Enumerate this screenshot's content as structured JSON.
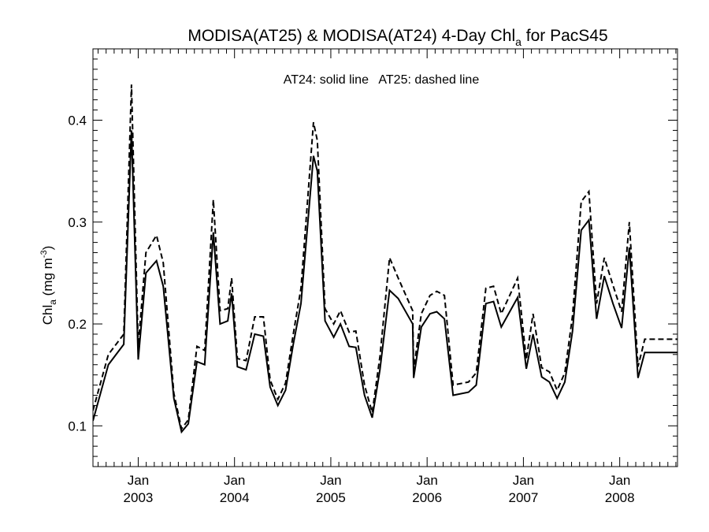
{
  "chart_data": {
    "type": "line",
    "title": {
      "prefix": "MODISA(AT25) & MODISA(AT24) 4-Day Chl",
      "subscript": "a",
      "suffix": " for PacS45"
    },
    "ylabel": {
      "prefix": "Chl",
      "subscript": "a",
      "middle": " (mg m",
      "superscript": "-3",
      "suffix": ")"
    },
    "annotation": "AT24: solid line   AT25: dashed line",
    "xlim": [
      2002.53,
      2008.6
    ],
    "ylim": [
      0.06,
      0.47
    ],
    "y_ticks": [
      {
        "value": 0.1,
        "label": "0.1"
      },
      {
        "value": 0.2,
        "label": "0.2"
      },
      {
        "value": 0.3,
        "label": "0.3"
      },
      {
        "value": 0.4,
        "label": "0.4"
      }
    ],
    "x_ticks": [
      {
        "value": 2003.0,
        "month": "Jan",
        "year": "2003"
      },
      {
        "value": 2004.0,
        "month": "Jan",
        "year": "2004"
      },
      {
        "value": 2005.0,
        "month": "Jan",
        "year": "2005"
      },
      {
        "value": 2006.0,
        "month": "Jan",
        "year": "2006"
      },
      {
        "value": 2007.0,
        "month": "Jan",
        "year": "2007"
      },
      {
        "value": 2008.0,
        "month": "Jan",
        "year": "2008"
      }
    ],
    "grid": false,
    "series": [
      {
        "style": "solid",
        "points": [
          [
            2002.53,
            0.105
          ],
          [
            2002.69,
            0.16
          ],
          [
            2002.85,
            0.18
          ],
          [
            2002.93,
            0.39
          ],
          [
            2003.0,
            0.165
          ],
          [
            2003.08,
            0.25
          ],
          [
            2003.19,
            0.262
          ],
          [
            2003.26,
            0.237
          ],
          [
            2003.37,
            0.127
          ],
          [
            2003.45,
            0.094
          ],
          [
            2003.52,
            0.102
          ],
          [
            2003.61,
            0.163
          ],
          [
            2003.69,
            0.16
          ],
          [
            2003.78,
            0.29
          ],
          [
            2003.85,
            0.2
          ],
          [
            2003.93,
            0.203
          ],
          [
            2003.97,
            0.23
          ],
          [
            2004.03,
            0.158
          ],
          [
            2004.12,
            0.155
          ],
          [
            2004.21,
            0.19
          ],
          [
            2004.3,
            0.188
          ],
          [
            2004.37,
            0.138
          ],
          [
            2004.45,
            0.12
          ],
          [
            2004.53,
            0.135
          ],
          [
            2004.61,
            0.18
          ],
          [
            2004.69,
            0.22
          ],
          [
            2004.82,
            0.365
          ],
          [
            2004.86,
            0.35
          ],
          [
            2004.94,
            0.203
          ],
          [
            2005.03,
            0.187
          ],
          [
            2005.1,
            0.2
          ],
          [
            2005.19,
            0.178
          ],
          [
            2005.26,
            0.177
          ],
          [
            2005.35,
            0.13
          ],
          [
            2005.43,
            0.108
          ],
          [
            2005.51,
            0.155
          ],
          [
            2005.61,
            0.233
          ],
          [
            2005.7,
            0.225
          ],
          [
            2005.85,
            0.2
          ],
          [
            2005.86,
            0.147
          ],
          [
            2005.94,
            0.197
          ],
          [
            2006.03,
            0.21
          ],
          [
            2006.1,
            0.212
          ],
          [
            2006.18,
            0.205
          ],
          [
            2006.27,
            0.13
          ],
          [
            2006.43,
            0.133
          ],
          [
            2006.51,
            0.14
          ],
          [
            2006.61,
            0.22
          ],
          [
            2006.69,
            0.222
          ],
          [
            2006.77,
            0.197
          ],
          [
            2006.94,
            0.226
          ],
          [
            2007.03,
            0.156
          ],
          [
            2007.1,
            0.19
          ],
          [
            2007.19,
            0.148
          ],
          [
            2007.27,
            0.143
          ],
          [
            2007.35,
            0.127
          ],
          [
            2007.43,
            0.143
          ],
          [
            2007.51,
            0.193
          ],
          [
            2007.6,
            0.292
          ],
          [
            2007.68,
            0.302
          ],
          [
            2007.76,
            0.205
          ],
          [
            2007.84,
            0.247
          ],
          [
            2007.93,
            0.22
          ],
          [
            2008.02,
            0.196
          ],
          [
            2008.1,
            0.275
          ],
          [
            2008.19,
            0.147
          ],
          [
            2008.26,
            0.172
          ],
          [
            2008.6,
            0.172
          ]
        ]
      },
      {
        "style": "dashed",
        "points": [
          [
            2002.53,
            0.115
          ],
          [
            2002.69,
            0.17
          ],
          [
            2002.85,
            0.19
          ],
          [
            2002.93,
            0.435
          ],
          [
            2003.0,
            0.178
          ],
          [
            2003.08,
            0.27
          ],
          [
            2003.19,
            0.287
          ],
          [
            2003.26,
            0.26
          ],
          [
            2003.37,
            0.132
          ],
          [
            2003.45,
            0.097
          ],
          [
            2003.52,
            0.106
          ],
          [
            2003.61,
            0.178
          ],
          [
            2003.69,
            0.174
          ],
          [
            2003.78,
            0.322
          ],
          [
            2003.85,
            0.213
          ],
          [
            2003.93,
            0.215
          ],
          [
            2003.97,
            0.245
          ],
          [
            2004.03,
            0.166
          ],
          [
            2004.12,
            0.164
          ],
          [
            2004.21,
            0.207
          ],
          [
            2004.3,
            0.207
          ],
          [
            2004.37,
            0.145
          ],
          [
            2004.45,
            0.126
          ],
          [
            2004.53,
            0.142
          ],
          [
            2004.61,
            0.19
          ],
          [
            2004.69,
            0.235
          ],
          [
            2004.82,
            0.398
          ],
          [
            2004.86,
            0.38
          ],
          [
            2004.94,
            0.215
          ],
          [
            2005.03,
            0.2
          ],
          [
            2005.1,
            0.213
          ],
          [
            2005.19,
            0.192
          ],
          [
            2005.26,
            0.193
          ],
          [
            2005.35,
            0.14
          ],
          [
            2005.43,
            0.113
          ],
          [
            2005.51,
            0.168
          ],
          [
            2005.61,
            0.265
          ],
          [
            2005.7,
            0.245
          ],
          [
            2005.85,
            0.213
          ],
          [
            2005.86,
            0.155
          ],
          [
            2005.94,
            0.21
          ],
          [
            2006.03,
            0.228
          ],
          [
            2006.1,
            0.232
          ],
          [
            2006.18,
            0.228
          ],
          [
            2006.27,
            0.14
          ],
          [
            2006.43,
            0.143
          ],
          [
            2006.51,
            0.152
          ],
          [
            2006.61,
            0.235
          ],
          [
            2006.69,
            0.237
          ],
          [
            2006.77,
            0.21
          ],
          [
            2006.94,
            0.245
          ],
          [
            2007.03,
            0.165
          ],
          [
            2007.1,
            0.21
          ],
          [
            2007.19,
            0.157
          ],
          [
            2007.27,
            0.153
          ],
          [
            2007.35,
            0.135
          ],
          [
            2007.43,
            0.152
          ],
          [
            2007.51,
            0.208
          ],
          [
            2007.6,
            0.32
          ],
          [
            2007.68,
            0.33
          ],
          [
            2007.76,
            0.22
          ],
          [
            2007.84,
            0.265
          ],
          [
            2007.93,
            0.238
          ],
          [
            2008.02,
            0.212
          ],
          [
            2008.1,
            0.3
          ],
          [
            2008.19,
            0.158
          ],
          [
            2008.26,
            0.185
          ],
          [
            2008.6,
            0.185
          ]
        ]
      }
    ]
  }
}
